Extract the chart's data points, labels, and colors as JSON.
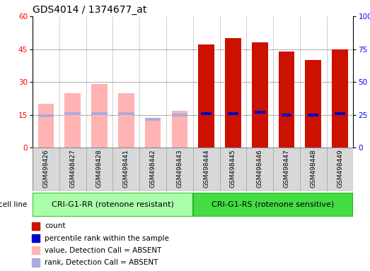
{
  "title": "GDS4014 / 1374677_at",
  "samples": [
    "GSM498426",
    "GSM498427",
    "GSM498428",
    "GSM498441",
    "GSM498442",
    "GSM498443",
    "GSM498444",
    "GSM498445",
    "GSM498446",
    "GSM498447",
    "GSM498448",
    "GSM498449"
  ],
  "group1_label": "CRI-G1-RR (rotenone resistant)",
  "group2_label": "CRI-G1-RS (rotenone sensitive)",
  "group1_count": 6,
  "group2_count": 6,
  "absent_value": [
    20,
    25,
    29,
    25,
    13,
    17
  ],
  "absent_rank": [
    14.5,
    15.5,
    15.5,
    15.5,
    13.0,
    15.0
  ],
  "present_count": [
    47,
    50,
    48,
    44,
    40,
    45
  ],
  "present_rank": [
    26,
    26,
    27,
    25,
    25,
    26
  ],
  "ylim_left": [
    0,
    60
  ],
  "ylim_right": [
    0,
    100
  ],
  "yticks_left": [
    0,
    15,
    30,
    45,
    60
  ],
  "yticks_right": [
    0,
    25,
    50,
    75,
    100
  ],
  "absent_bar_color": "#ffb3b3",
  "absent_rank_color": "#aaaadd",
  "present_bar_color": "#cc1100",
  "present_rank_color": "#0000cc",
  "group1_bg": "#aaffaa",
  "group2_bg": "#44dd44",
  "group_border_color": "#22aa22",
  "sample_area_bg": "#d8d8d8",
  "title_fontsize": 10,
  "tick_fontsize": 7.5,
  "sample_fontsize": 6.5,
  "legend_fontsize": 7.5,
  "cell_line_label": "cell line"
}
